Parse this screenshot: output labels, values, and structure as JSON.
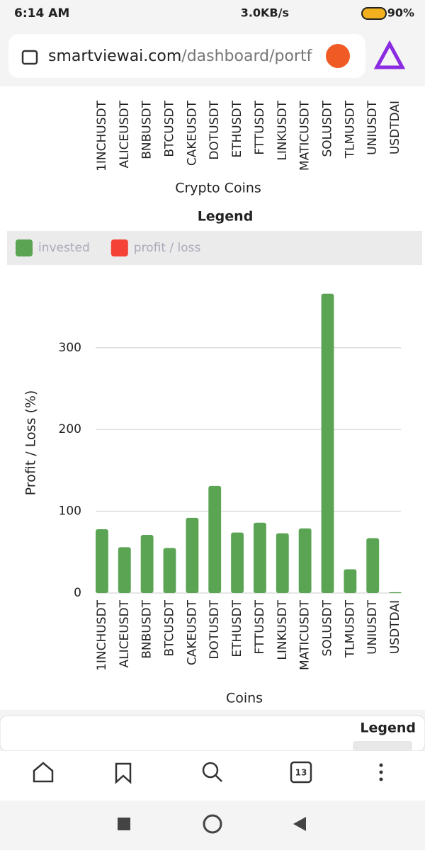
{
  "status_bar": {
    "time": "6:14 AM",
    "speed": "3.0KB/s",
    "battery": "90%"
  },
  "browser": {
    "url_host": "smartviewai.com",
    "url_path": "/dashboard/portf"
  },
  "top_chart": {
    "categories": [
      "1INCHUSDT",
      "ALICEUSDT",
      "BNBUSDT",
      "BTCUSDT",
      "CAKEUSDT",
      "DOTUSDT",
      "ETHUSDT",
      "FTTUSDT",
      "LINKUSDT",
      "MATICUSDT",
      "SOLUSDT",
      "TLMUSDT",
      "UNIUSDT",
      "USDTDAI"
    ],
    "x_label": "Crypto Coins"
  },
  "legend": {
    "title": "Legend",
    "items": [
      {
        "name": "invested",
        "color": "#5aa454"
      },
      {
        "name": "profit / loss",
        "color": "#f44336"
      }
    ]
  },
  "chart_data": {
    "type": "bar",
    "categories": [
      "1INCHUSDT",
      "ALICEUSDT",
      "BNBUSDT",
      "BTCUSDT",
      "CAKEUSDT",
      "DOTUSDT",
      "ETHUSDT",
      "FTTUSDT",
      "LINKUSDT",
      "MATICUSDT",
      "SOLUSDT",
      "TLMUSDT",
      "UNIUSDT",
      "USDTDAI"
    ],
    "values": [
      78,
      56,
      71,
      55,
      92,
      131,
      74,
      86,
      73,
      79,
      366,
      29,
      67,
      1
    ],
    "color": "#5aa454",
    "x_label": "Coins",
    "y_label": "Profit / Loss (%)",
    "ylim": [
      0,
      370
    ],
    "yticks": [
      0,
      100,
      200,
      300
    ],
    "grid": true
  },
  "next_card": {
    "title": "Legend"
  },
  "nav": {
    "tabs": "13"
  }
}
